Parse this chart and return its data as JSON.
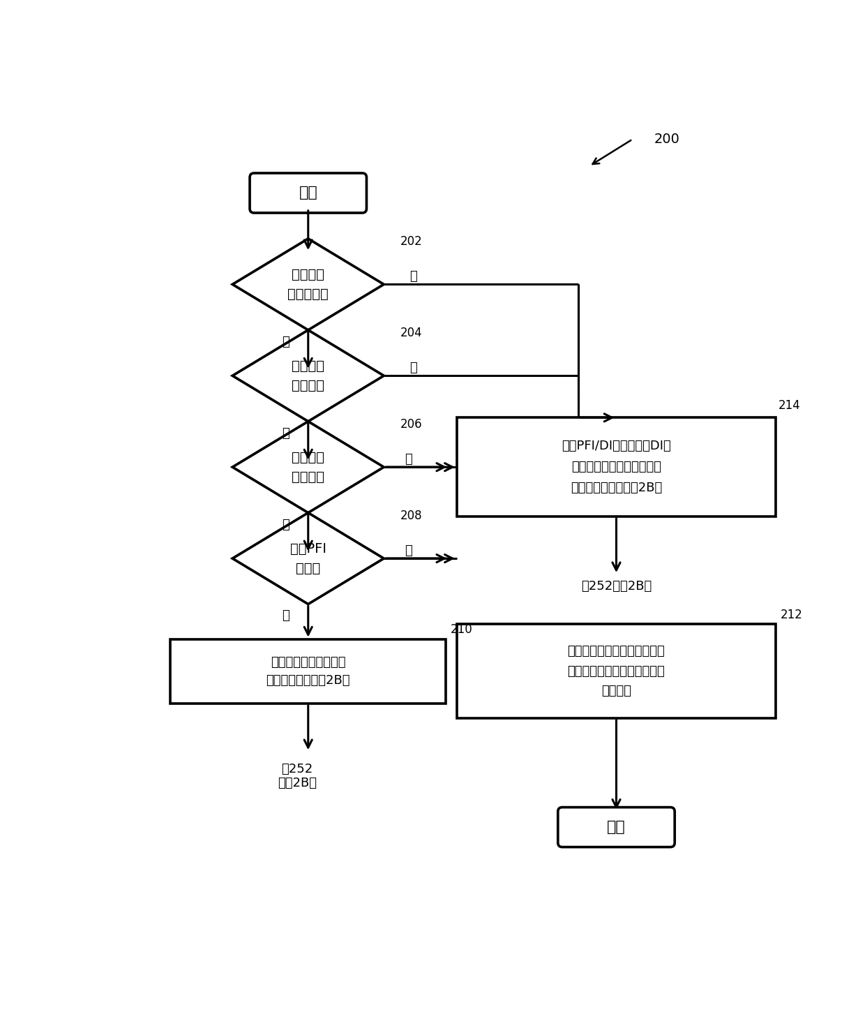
{
  "fig_width": 12.4,
  "fig_height": 14.7,
  "bg_color": "#ffffff",
  "line_color": "#000000",
  "text_color": "#000000",
  "line_width": 2.2,
  "ref_number": "200",
  "start_label": "开始",
  "end_label": "结束",
  "diamond_202_line1": "经过阀值",
  "diamond_202_line2": "数的起动？",
  "diamond_202_ref": "202",
  "diamond_204_line1": "行驶阀值",
  "diamond_204_line2": "英里数？",
  "diamond_204_ref": "204",
  "diamond_206_line1": "退出预递",
  "diamond_206_line2": "送状况？",
  "diamond_206_ref": "206",
  "diamond_208_line1": "存在PFI",
  "diamond_208_line2": "硬件？",
  "diamond_208_ref": "208",
  "box_214_line1": "对于PFI/DI系统和仅有DI的",
  "box_214_line2": "系统，使用递送后校准调节",
  "box_214_line3": "发动机燃料供给（图2B）",
  "box_214_ref": "214",
  "box_210_line1": "使用预递送校准调节发",
  "box_210_line2": "动机燃料供给（图2B）",
  "box_210_ref": "210",
  "box_212_line1": "用进气道燃料喷射调节发动机",
  "box_212_line2": "燃料供给，并根据需要仅激活",
  "box_212_line3": "直接喷射",
  "box_212_ref": "212",
  "label_to252_left_1": "到252",
  "label_to252_left_2": "（图2B）",
  "label_to252_right": "到252（图2B）",
  "yes_label": "是",
  "no_label": "否"
}
